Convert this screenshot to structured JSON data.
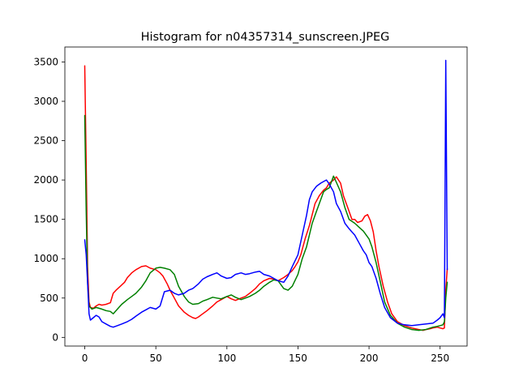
{
  "chart_data": {
    "type": "line",
    "title": "Histogram for n04357314_sunscreen.JPEG",
    "xlabel": "",
    "ylabel": "",
    "xlim": [
      -14,
      269
    ],
    "ylim": [
      -110,
      3690
    ],
    "xticks": [
      0,
      50,
      100,
      150,
      200,
      250
    ],
    "yticks": [
      0,
      500,
      1000,
      1500,
      2000,
      2500,
      3000,
      3500
    ],
    "grid": false,
    "legend": "none",
    "series": [
      {
        "color": "#ff0000",
        "points": [
          [
            0,
            3450
          ],
          [
            1,
            2200
          ],
          [
            2,
            900
          ],
          [
            3,
            450
          ],
          [
            4,
            380
          ],
          [
            6,
            370
          ],
          [
            8,
            400
          ],
          [
            10,
            420
          ],
          [
            12,
            410
          ],
          [
            15,
            420
          ],
          [
            18,
            440
          ],
          [
            20,
            560
          ],
          [
            22,
            600
          ],
          [
            25,
            650
          ],
          [
            28,
            700
          ],
          [
            30,
            760
          ],
          [
            33,
            820
          ],
          [
            36,
            860
          ],
          [
            40,
            900
          ],
          [
            43,
            910
          ],
          [
            46,
            880
          ],
          [
            50,
            860
          ],
          [
            53,
            820
          ],
          [
            55,
            780
          ],
          [
            58,
            680
          ],
          [
            60,
            600
          ],
          [
            63,
            500
          ],
          [
            66,
            400
          ],
          [
            70,
            320
          ],
          [
            73,
            280
          ],
          [
            76,
            250
          ],
          [
            78,
            240
          ],
          [
            80,
            260
          ],
          [
            83,
            300
          ],
          [
            86,
            340
          ],
          [
            90,
            400
          ],
          [
            93,
            450
          ],
          [
            96,
            480
          ],
          [
            100,
            520
          ],
          [
            103,
            490
          ],
          [
            106,
            470
          ],
          [
            110,
            500
          ],
          [
            113,
            520
          ],
          [
            116,
            560
          ],
          [
            120,
            620
          ],
          [
            123,
            680
          ],
          [
            126,
            720
          ],
          [
            130,
            750
          ],
          [
            133,
            740
          ],
          [
            136,
            720
          ],
          [
            140,
            760
          ],
          [
            143,
            800
          ],
          [
            146,
            850
          ],
          [
            148,
            900
          ],
          [
            150,
            960
          ],
          [
            152,
            1050
          ],
          [
            155,
            1250
          ],
          [
            158,
            1420
          ],
          [
            160,
            1560
          ],
          [
            162,
            1700
          ],
          [
            165,
            1800
          ],
          [
            168,
            1870
          ],
          [
            170,
            1900
          ],
          [
            172,
            1960
          ],
          [
            175,
            2000
          ],
          [
            177,
            2040
          ],
          [
            180,
            1960
          ],
          [
            182,
            1800
          ],
          [
            185,
            1650
          ],
          [
            188,
            1500
          ],
          [
            190,
            1500
          ],
          [
            192,
            1460
          ],
          [
            195,
            1480
          ],
          [
            197,
            1540
          ],
          [
            199,
            1560
          ],
          [
            201,
            1480
          ],
          [
            203,
            1340
          ],
          [
            205,
            1100
          ],
          [
            207,
            900
          ],
          [
            210,
            650
          ],
          [
            213,
            450
          ],
          [
            216,
            300
          ],
          [
            220,
            200
          ],
          [
            225,
            150
          ],
          [
            230,
            120
          ],
          [
            235,
            100
          ],
          [
            238,
            90
          ],
          [
            240,
            100
          ],
          [
            243,
            110
          ],
          [
            245,
            120
          ],
          [
            248,
            130
          ],
          [
            250,
            120
          ],
          [
            252,
            110
          ],
          [
            253,
            120
          ],
          [
            254,
            600
          ],
          [
            255,
            870
          ]
        ]
      },
      {
        "color": "#008000",
        "points": [
          [
            0,
            2820
          ],
          [
            1,
            1600
          ],
          [
            2,
            700
          ],
          [
            3,
            400
          ],
          [
            5,
            360
          ],
          [
            8,
            380
          ],
          [
            12,
            360
          ],
          [
            15,
            340
          ],
          [
            18,
            330
          ],
          [
            20,
            300
          ],
          [
            23,
            360
          ],
          [
            26,
            420
          ],
          [
            30,
            480
          ],
          [
            33,
            520
          ],
          [
            36,
            560
          ],
          [
            40,
            640
          ],
          [
            43,
            720
          ],
          [
            46,
            820
          ],
          [
            50,
            880
          ],
          [
            53,
            890
          ],
          [
            56,
            880
          ],
          [
            60,
            860
          ],
          [
            63,
            800
          ],
          [
            66,
            650
          ],
          [
            70,
            520
          ],
          [
            73,
            450
          ],
          [
            76,
            420
          ],
          [
            80,
            430
          ],
          [
            83,
            460
          ],
          [
            86,
            480
          ],
          [
            90,
            510
          ],
          [
            93,
            500
          ],
          [
            96,
            490
          ],
          [
            100,
            520
          ],
          [
            103,
            540
          ],
          [
            106,
            510
          ],
          [
            110,
            480
          ],
          [
            113,
            500
          ],
          [
            116,
            520
          ],
          [
            120,
            560
          ],
          [
            123,
            600
          ],
          [
            126,
            650
          ],
          [
            130,
            700
          ],
          [
            133,
            730
          ],
          [
            136,
            720
          ],
          [
            140,
            620
          ],
          [
            143,
            600
          ],
          [
            146,
            650
          ],
          [
            150,
            800
          ],
          [
            153,
            1000
          ],
          [
            156,
            1150
          ],
          [
            158,
            1300
          ],
          [
            160,
            1450
          ],
          [
            163,
            1600
          ],
          [
            166,
            1750
          ],
          [
            168,
            1850
          ],
          [
            170,
            1880
          ],
          [
            172,
            1900
          ],
          [
            175,
            2050
          ],
          [
            177,
            1970
          ],
          [
            180,
            1850
          ],
          [
            183,
            1650
          ],
          [
            186,
            1500
          ],
          [
            190,
            1450
          ],
          [
            193,
            1400
          ],
          [
            196,
            1350
          ],
          [
            198,
            1300
          ],
          [
            200,
            1250
          ],
          [
            202,
            1150
          ],
          [
            205,
            950
          ],
          [
            208,
            700
          ],
          [
            211,
            450
          ],
          [
            215,
            280
          ],
          [
            220,
            180
          ],
          [
            225,
            130
          ],
          [
            230,
            100
          ],
          [
            235,
            90
          ],
          [
            240,
            100
          ],
          [
            245,
            130
          ],
          [
            248,
            140
          ],
          [
            250,
            150
          ],
          [
            252,
            160
          ],
          [
            253,
            200
          ],
          [
            254,
            500
          ],
          [
            255,
            700
          ]
        ]
      },
      {
        "color": "#0000ff",
        "points": [
          [
            0,
            1240
          ],
          [
            1,
            1050
          ],
          [
            2,
            700
          ],
          [
            3,
            300
          ],
          [
            4,
            220
          ],
          [
            6,
            250
          ],
          [
            8,
            280
          ],
          [
            10,
            260
          ],
          [
            12,
            200
          ],
          [
            15,
            170
          ],
          [
            18,
            140
          ],
          [
            20,
            130
          ],
          [
            23,
            150
          ],
          [
            26,
            170
          ],
          [
            30,
            200
          ],
          [
            33,
            230
          ],
          [
            36,
            270
          ],
          [
            40,
            320
          ],
          [
            43,
            350
          ],
          [
            46,
            380
          ],
          [
            50,
            360
          ],
          [
            53,
            400
          ],
          [
            56,
            580
          ],
          [
            60,
            600
          ],
          [
            63,
            560
          ],
          [
            66,
            540
          ],
          [
            70,
            560
          ],
          [
            73,
            600
          ],
          [
            76,
            620
          ],
          [
            80,
            680
          ],
          [
            83,
            740
          ],
          [
            86,
            770
          ],
          [
            90,
            800
          ],
          [
            93,
            820
          ],
          [
            96,
            780
          ],
          [
            100,
            750
          ],
          [
            103,
            760
          ],
          [
            106,
            800
          ],
          [
            110,
            820
          ],
          [
            113,
            800
          ],
          [
            116,
            810
          ],
          [
            120,
            830
          ],
          [
            123,
            840
          ],
          [
            126,
            800
          ],
          [
            130,
            780
          ],
          [
            133,
            750
          ],
          [
            136,
            720
          ],
          [
            140,
            700
          ],
          [
            143,
            780
          ],
          [
            146,
            900
          ],
          [
            150,
            1050
          ],
          [
            153,
            1300
          ],
          [
            156,
            1550
          ],
          [
            158,
            1750
          ],
          [
            160,
            1850
          ],
          [
            163,
            1920
          ],
          [
            166,
            1960
          ],
          [
            168,
            1980
          ],
          [
            170,
            2000
          ],
          [
            172,
            1950
          ],
          [
            175,
            1850
          ],
          [
            177,
            1700
          ],
          [
            180,
            1600
          ],
          [
            183,
            1450
          ],
          [
            186,
            1380
          ],
          [
            190,
            1300
          ],
          [
            193,
            1200
          ],
          [
            196,
            1100
          ],
          [
            198,
            1050
          ],
          [
            200,
            950
          ],
          [
            202,
            900
          ],
          [
            205,
            750
          ],
          [
            208,
            550
          ],
          [
            211,
            380
          ],
          [
            215,
            250
          ],
          [
            220,
            180
          ],
          [
            225,
            160
          ],
          [
            230,
            150
          ],
          [
            235,
            160
          ],
          [
            240,
            170
          ],
          [
            245,
            180
          ],
          [
            248,
            220
          ],
          [
            250,
            250
          ],
          [
            252,
            300
          ],
          [
            253,
            250
          ],
          [
            254,
            3520
          ],
          [
            255,
            860
          ]
        ]
      }
    ]
  }
}
